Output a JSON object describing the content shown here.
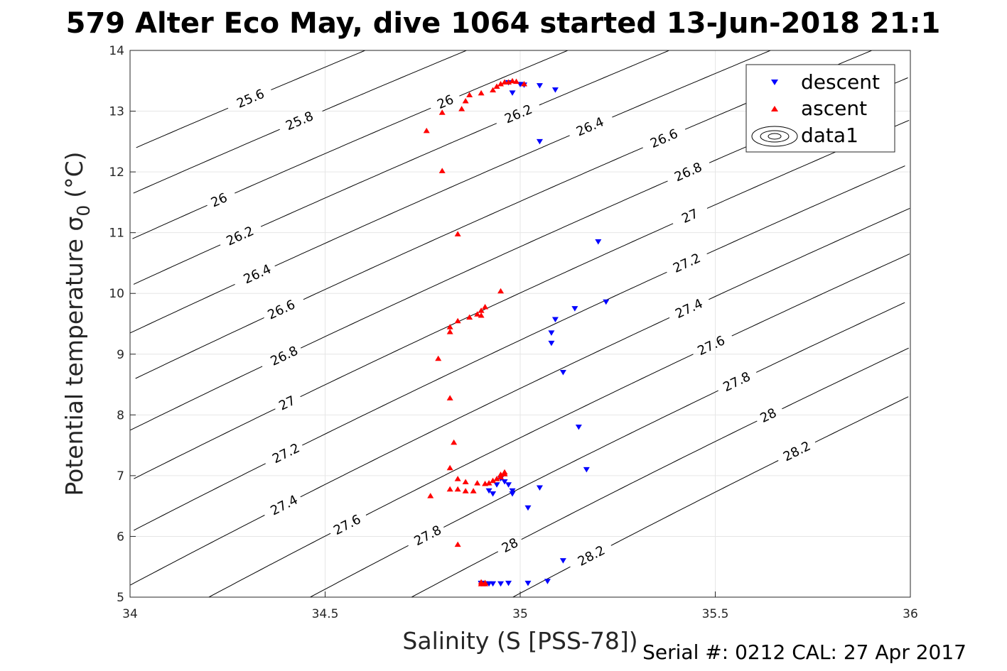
{
  "chart_data": {
    "type": "scatter",
    "title": "579 Alter Eco May, dive 1064 started 13-Jun-2018 21:1",
    "xlabel": "Salinity (S [PSS-78])",
    "ylabel": "Potential temperature σ",
    "ylabel_subscript": "0",
    "ylabel_unit": "(°C)",
    "footer": "Serial #: 0212  CAL: 27 Apr 2017",
    "xlim": [
      34,
      36
    ],
    "ylim": [
      5,
      14
    ],
    "xticks": [
      "34",
      "34.5",
      "35",
      "35.5",
      "36"
    ],
    "yticks": [
      "5",
      "6",
      "7",
      "8",
      "9",
      "10",
      "11",
      "12",
      "13",
      "14"
    ],
    "grid": true,
    "legend_position": "top-right",
    "legend": [
      "descent",
      "ascent",
      "data1"
    ],
    "colors": {
      "descent": "#0000ff",
      "ascent": "#ff0000",
      "contour": "#000000"
    },
    "contour_levels": [
      "25.6",
      "25.8",
      "26",
      "26.2",
      "26.4",
      "26.6",
      "26.8",
      "27",
      "27.2",
      "27.4",
      "27.6",
      "27.8",
      "28",
      "28.2"
    ],
    "series": [
      {
        "name": "descent",
        "marker": "triangle-down",
        "points": [
          [
            34.97,
            13.47
          ],
          [
            34.98,
            13.3
          ],
          [
            35.0,
            13.44
          ],
          [
            35.01,
            13.43
          ],
          [
            35.05,
            13.42
          ],
          [
            35.09,
            13.35
          ],
          [
            35.05,
            12.5
          ],
          [
            35.2,
            10.85
          ],
          [
            35.22,
            9.86
          ],
          [
            35.14,
            9.75
          ],
          [
            35.09,
            9.57
          ],
          [
            35.08,
            9.35
          ],
          [
            35.08,
            9.18
          ],
          [
            35.11,
            8.7
          ],
          [
            35.15,
            7.8
          ],
          [
            35.17,
            7.1
          ],
          [
            35.05,
            6.8
          ],
          [
            34.98,
            6.75
          ],
          [
            34.98,
            6.7
          ],
          [
            34.97,
            6.85
          ],
          [
            34.96,
            6.9
          ],
          [
            34.95,
            6.95
          ],
          [
            34.94,
            6.85
          ],
          [
            34.92,
            6.75
          ],
          [
            34.93,
            6.7
          ],
          [
            35.02,
            6.47
          ],
          [
            35.11,
            5.6
          ],
          [
            35.07,
            5.26
          ],
          [
            35.02,
            5.23
          ],
          [
            34.97,
            5.23
          ],
          [
            34.95,
            5.22
          ],
          [
            34.93,
            5.22
          ],
          [
            34.92,
            5.22
          ],
          [
            34.91,
            5.22
          ],
          [
            34.9,
            5.23
          ],
          [
            34.9,
            5.22
          ]
        ]
      },
      {
        "name": "ascent",
        "marker": "triangle-up",
        "points": [
          [
            34.76,
            12.68
          ],
          [
            34.8,
            12.98
          ],
          [
            34.85,
            13.04
          ],
          [
            34.86,
            13.17
          ],
          [
            34.87,
            13.27
          ],
          [
            34.9,
            13.3
          ],
          [
            34.93,
            13.35
          ],
          [
            34.94,
            13.41
          ],
          [
            34.95,
            13.45
          ],
          [
            34.97,
            13.48
          ],
          [
            34.98,
            13.5
          ],
          [
            34.99,
            13.49
          ],
          [
            35.01,
            13.45
          ],
          [
            34.96,
            13.48
          ],
          [
            34.8,
            12.02
          ],
          [
            34.84,
            10.98
          ],
          [
            34.95,
            10.04
          ],
          [
            34.91,
            9.78
          ],
          [
            34.9,
            9.72
          ],
          [
            34.89,
            9.66
          ],
          [
            34.9,
            9.64
          ],
          [
            34.87,
            9.61
          ],
          [
            34.84,
            9.55
          ],
          [
            34.82,
            9.45
          ],
          [
            34.82,
            9.37
          ],
          [
            34.79,
            8.93
          ],
          [
            34.82,
            8.28
          ],
          [
            34.83,
            7.55
          ],
          [
            34.82,
            7.13
          ],
          [
            34.84,
            6.95
          ],
          [
            34.86,
            6.9
          ],
          [
            34.82,
            6.78
          ],
          [
            34.84,
            6.78
          ],
          [
            34.86,
            6.75
          ],
          [
            34.88,
            6.75
          ],
          [
            34.89,
            6.88
          ],
          [
            34.91,
            6.87
          ],
          [
            34.92,
            6.88
          ],
          [
            34.93,
            6.92
          ],
          [
            34.94,
            6.95
          ],
          [
            34.95,
            6.98
          ],
          [
            34.95,
            7.02
          ],
          [
            34.96,
            7.03
          ],
          [
            34.96,
            7.06
          ],
          [
            34.77,
            6.67
          ],
          [
            34.84,
            5.87
          ],
          [
            34.9,
            5.25
          ],
          [
            34.91,
            5.24
          ],
          [
            34.9,
            5.22
          ],
          [
            34.91,
            5.22
          ]
        ]
      }
    ]
  }
}
